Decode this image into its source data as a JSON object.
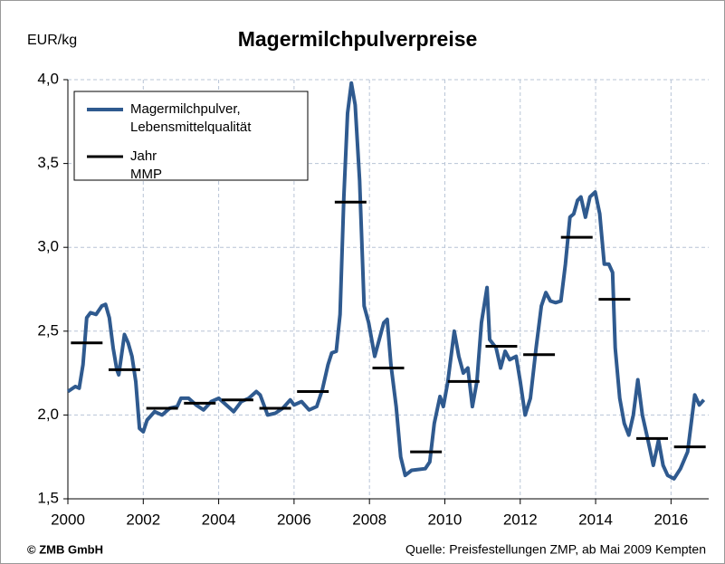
{
  "chart_data": {
    "type": "line",
    "title": "Magermilchpulverpreise",
    "y_label": "EUR/kg",
    "footer_left": "© ZMB GmbH",
    "footer_right": "Quelle: Preisfestellungen ZMP, ab Mai 2009 Kempten",
    "xlim": [
      2000,
      2017
    ],
    "xticks": [
      2000,
      2002,
      2004,
      2006,
      2008,
      2010,
      2012,
      2014,
      2016
    ],
    "ylim": [
      1.5,
      4.0
    ],
    "yticks": [
      {
        "value": 1.5,
        "label": "1,5"
      },
      {
        "value": 2.0,
        "label": "2,0"
      },
      {
        "value": 2.5,
        "label": "2,5"
      },
      {
        "value": 3.0,
        "label": "3,0"
      },
      {
        "value": 3.5,
        "label": "3,5"
      },
      {
        "value": 4.0,
        "label": "4,0"
      }
    ],
    "grid": true,
    "legend": "upper left",
    "series": [
      {
        "name": "Magermilchpulver, Lebensmittelqualität",
        "color": "#2f5a8f",
        "style": "line",
        "x": [
          2000.0,
          2000.2,
          2000.3,
          2000.4,
          2000.5,
          2000.6,
          2000.75,
          2000.9,
          2001.0,
          2001.1,
          2001.2,
          2001.3,
          2001.35,
          2001.5,
          2001.6,
          2001.7,
          2001.8,
          2001.9,
          2002.0,
          2002.1,
          2002.3,
          2002.5,
          2002.7,
          2002.9,
          2003.0,
          2003.2,
          2003.4,
          2003.6,
          2003.8,
          2004.0,
          2004.2,
          2004.4,
          2004.6,
          2004.8,
          2005.0,
          2005.1,
          2005.3,
          2005.5,
          2005.7,
          2005.9,
          2006.0,
          2006.2,
          2006.4,
          2006.6,
          2006.75,
          2006.9,
          2007.0,
          2007.12,
          2007.22,
          2007.32,
          2007.42,
          2007.52,
          2007.62,
          2007.74,
          2007.86,
          2007.98,
          2008.14,
          2008.38,
          2008.47,
          2008.57,
          2008.71,
          2008.83,
          2008.95,
          2009.12,
          2009.48,
          2009.6,
          2009.72,
          2009.87,
          2009.96,
          2010.08,
          2010.25,
          2010.37,
          2010.49,
          2010.61,
          2010.73,
          2010.85,
          2010.97,
          2011.12,
          2011.19,
          2011.36,
          2011.48,
          2011.6,
          2011.72,
          2011.89,
          2012.0,
          2012.13,
          2012.27,
          2012.42,
          2012.56,
          2012.68,
          2012.8,
          2012.94,
          2013.08,
          2013.2,
          2013.32,
          2013.42,
          2013.52,
          2013.61,
          2013.73,
          2013.85,
          2013.99,
          2014.11,
          2014.23,
          2014.35,
          2014.45,
          2014.52,
          2014.64,
          2014.76,
          2014.88,
          2015.0,
          2015.12,
          2015.24,
          2015.39,
          2015.53,
          2015.67,
          2015.79,
          2015.91,
          2016.08,
          2016.25,
          2016.44,
          2016.63,
          2016.75,
          2016.87
        ],
        "values": [
          2.14,
          2.17,
          2.16,
          2.3,
          2.58,
          2.61,
          2.6,
          2.65,
          2.66,
          2.58,
          2.4,
          2.27,
          2.24,
          2.48,
          2.43,
          2.35,
          2.2,
          1.92,
          1.9,
          1.97,
          2.02,
          2.0,
          2.04,
          2.05,
          2.1,
          2.1,
          2.06,
          2.03,
          2.08,
          2.1,
          2.06,
          2.02,
          2.08,
          2.1,
          2.14,
          2.12,
          2.0,
          2.01,
          2.04,
          2.09,
          2.06,
          2.08,
          2.03,
          2.05,
          2.15,
          2.3,
          2.37,
          2.38,
          2.6,
          3.3,
          3.8,
          3.98,
          3.85,
          3.4,
          2.65,
          2.55,
          2.35,
          2.55,
          2.57,
          2.3,
          2.05,
          1.75,
          1.64,
          1.67,
          1.68,
          1.72,
          1.95,
          2.11,
          2.05,
          2.2,
          2.5,
          2.35,
          2.25,
          2.28,
          2.05,
          2.2,
          2.55,
          2.76,
          2.45,
          2.4,
          2.28,
          2.38,
          2.33,
          2.35,
          2.2,
          2.0,
          2.1,
          2.4,
          2.65,
          2.73,
          2.68,
          2.67,
          2.68,
          2.9,
          3.18,
          3.2,
          3.28,
          3.3,
          3.18,
          3.3,
          3.33,
          3.2,
          2.9,
          2.9,
          2.85,
          2.4,
          2.1,
          1.95,
          1.88,
          2.0,
          2.21,
          2.0,
          1.85,
          1.7,
          1.85,
          1.7,
          1.64,
          1.62,
          1.68,
          1.78,
          2.12,
          2.06,
          2.09
        ]
      },
      {
        "name": "Jahr MMP",
        "color": "#000000",
        "style": "step",
        "x": [
          2000,
          2001,
          2002,
          2003,
          2004,
          2005,
          2006,
          2007,
          2008,
          2009,
          2010,
          2011,
          2012,
          2013,
          2014,
          2015,
          2016
        ],
        "values": [
          2.43,
          2.27,
          2.04,
          2.07,
          2.09,
          2.04,
          2.14,
          3.27,
          2.28,
          1.78,
          2.2,
          2.41,
          2.36,
          3.06,
          2.69,
          1.86,
          1.81
        ]
      }
    ]
  }
}
